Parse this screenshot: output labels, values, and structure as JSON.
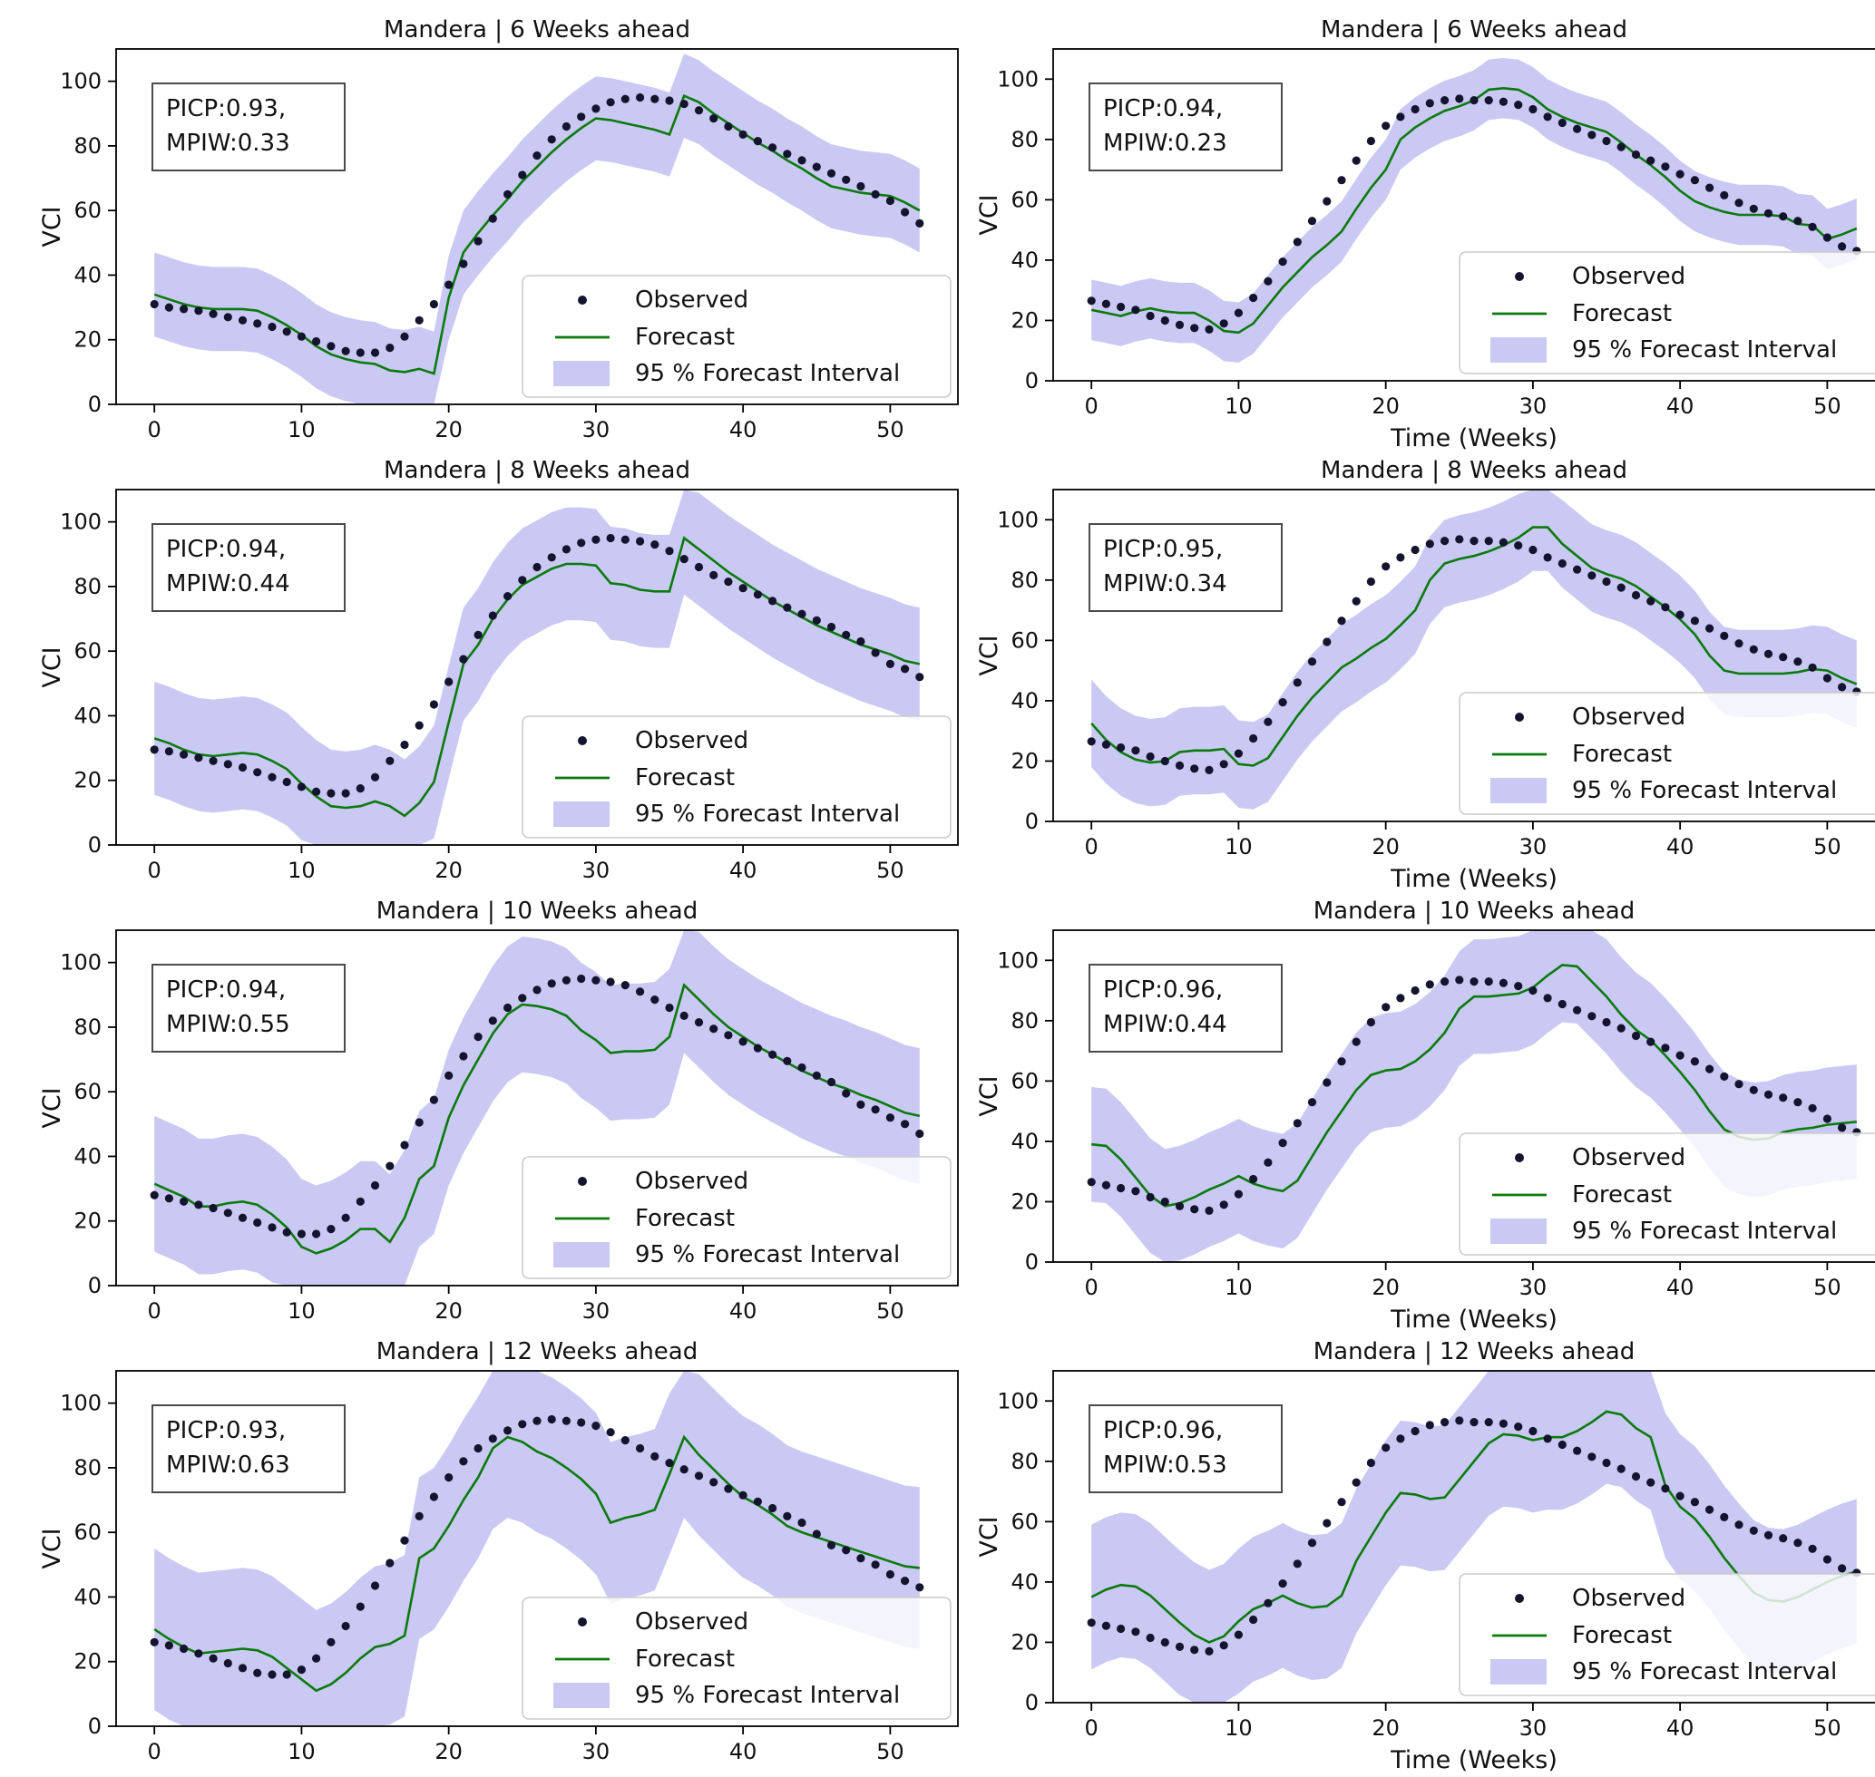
{
  "figure": {
    "y_label": "VCI",
    "x_label": "Time (Weeks)",
    "y_ticks": [
      0,
      20,
      40,
      60,
      80,
      100
    ],
    "x_ticks": [
      0,
      10,
      20,
      30,
      40,
      50
    ],
    "ylim": [
      0,
      110
    ],
    "xlim": [
      -2.6,
      54.6
    ],
    "legend": {
      "observed": "Observed",
      "forecast": "Forecast",
      "interval": "95 % Forecast Interval"
    },
    "colors": {
      "observed": "#14142e",
      "forecast": "#0a7a0a",
      "interval": "#8e8ee9",
      "interval_alpha": 0.48,
      "axis": "#000000",
      "annotation_border": "#4a4a4a",
      "legend_border": "#cccccc"
    }
  },
  "chart_data": [
    {
      "type": "line",
      "title": "Mandera | 6 Weeks ahead",
      "annotation_line1": "PICP:0.93,",
      "annotation_line2": "MPIW:0.33",
      "picp": 0.93,
      "mpiw": 0.33,
      "show_x_label": false,
      "interval_half_width": 13,
      "observed": [
        31,
        30,
        29.5,
        29,
        28,
        27,
        26,
        25,
        24,
        22.5,
        21,
        19.5,
        18,
        16.5,
        16,
        16,
        17.5,
        21,
        26,
        31,
        37,
        43.5,
        50.5,
        57.5,
        65,
        71,
        77,
        82,
        86,
        89,
        91.5,
        93.5,
        94.5,
        95,
        94.5,
        94,
        93,
        91,
        88.5,
        86,
        83.5,
        81.5,
        79.5,
        77.5,
        75.5,
        73.5,
        71.5,
        69.5,
        67.5,
        65,
        63,
        59.5,
        56
      ],
      "forecast": [
        34,
        32.5,
        31,
        30,
        29.5,
        29.5,
        29.5,
        29,
        27,
        24.5,
        21.5,
        18,
        15.5,
        14,
        13,
        12.5,
        10.5,
        10,
        11,
        9.5,
        33,
        47,
        53,
        58.5,
        63.5,
        69,
        73.5,
        78,
        82,
        85.5,
        88.5,
        88,
        87,
        86,
        85,
        83.5,
        95.5,
        93.5,
        90,
        87,
        84,
        81,
        78.5,
        75.5,
        73,
        70,
        67.5,
        66.5,
        65.5,
        65,
        64.5,
        62.5,
        60
      ]
    },
    {
      "type": "line",
      "title": "Mandera | 6 Weeks ahead",
      "annotation_line1": "PICP:0.94,",
      "annotation_line2": "MPIW:0.23",
      "picp": 0.94,
      "mpiw": 0.23,
      "show_x_label": true,
      "interval_half_width": 10,
      "observed": [
        26.5,
        25.5,
        24.5,
        23.5,
        21.5,
        20,
        18.5,
        17.5,
        17,
        19,
        22.5,
        27.5,
        33,
        39.5,
        46,
        53,
        59.5,
        66.5,
        73,
        79.5,
        84.5,
        87.5,
        90,
        92,
        93,
        93.5,
        93,
        93,
        92.5,
        91.5,
        90,
        87.5,
        85.5,
        83.5,
        81.5,
        79.5,
        77.5,
        75,
        73,
        71,
        68.5,
        66.5,
        64,
        61.5,
        59,
        57,
        55.5,
        54.5,
        53,
        51,
        47.5,
        44.5,
        43
      ],
      "forecast": [
        23.5,
        22.5,
        21.5,
        23,
        24,
        23,
        22.5,
        22.5,
        20,
        16.5,
        16,
        19,
        25,
        31,
        36,
        41,
        45,
        49.5,
        57,
        64,
        70,
        80,
        84,
        87,
        89.5,
        91,
        93,
        96.5,
        97,
        96.5,
        94,
        90,
        87.5,
        85.5,
        84,
        82.5,
        79,
        75,
        71.5,
        67.5,
        63,
        59.5,
        57.5,
        56,
        55,
        55,
        55,
        54.5,
        52,
        51.5,
        47,
        48.5,
        50.5
      ]
    },
    {
      "type": "line",
      "title": "Mandera | 8 Weeks ahead",
      "annotation_line1": "PICP:0.94,",
      "annotation_line2": "MPIW:0.44",
      "picp": 0.94,
      "mpiw": 0.44,
      "show_x_label": false,
      "interval_half_width": 17.5,
      "observed": [
        29.5,
        29,
        28,
        27,
        26,
        25,
        24,
        22.5,
        21,
        19.5,
        18,
        16.5,
        16,
        16,
        17.5,
        21,
        26,
        31,
        37,
        43.5,
        50.5,
        57.5,
        65,
        71,
        77,
        82,
        86,
        89,
        91.5,
        93.5,
        94.5,
        95,
        94.5,
        94,
        93,
        91,
        88.5,
        86,
        83.5,
        81.5,
        79.5,
        77.5,
        75.5,
        73.5,
        71.5,
        69.5,
        67.5,
        65,
        63,
        59.5,
        56,
        54.5,
        52
      ],
      "forecast": [
        33,
        31.5,
        29.5,
        28,
        27.5,
        28,
        28.5,
        28,
        26,
        23.5,
        19,
        15,
        12,
        11.5,
        12,
        13.5,
        12,
        9,
        13,
        19.5,
        38,
        56,
        62,
        70,
        76,
        80.5,
        83,
        85.5,
        87,
        87,
        86.5,
        81,
        80.5,
        79,
        78.5,
        78.5,
        95,
        91.5,
        88,
        84.5,
        81.5,
        78.5,
        75.5,
        73,
        70.5,
        68,
        66,
        64,
        62,
        60.5,
        59,
        57,
        56
      ]
    },
    {
      "type": "line",
      "title": "Mandera | 8 Weeks ahead",
      "annotation_line1": "PICP:0.95,",
      "annotation_line2": "MPIW:0.34",
      "picp": 0.95,
      "mpiw": 0.34,
      "show_x_label": true,
      "interval_half_width": 14.5,
      "observed": [
        26.5,
        25.5,
        24.5,
        23.5,
        21.5,
        20,
        18.5,
        17.5,
        17,
        19,
        22.5,
        27.5,
        33,
        39.5,
        46,
        53,
        59.5,
        66.5,
        73,
        79.5,
        84.5,
        87.5,
        90,
        92,
        93,
        93.5,
        93,
        93,
        92.5,
        91.5,
        90,
        87.5,
        85.5,
        83.5,
        81.5,
        79.5,
        77.5,
        75,
        73,
        71,
        68.5,
        66.5,
        64,
        61.5,
        59,
        57,
        55.5,
        54.5,
        53,
        51,
        47.5,
        44.5,
        43
      ],
      "forecast": [
        32.5,
        27,
        23,
        20.5,
        19.5,
        20,
        23,
        23.5,
        23.5,
        24,
        19,
        18.5,
        21,
        28,
        35,
        41,
        46,
        51,
        54,
        57.5,
        60.5,
        65,
        70,
        80,
        85.5,
        87,
        88,
        89.5,
        91.5,
        94,
        97.5,
        97.5,
        92,
        88,
        84,
        82,
        80.5,
        78,
        74.5,
        71,
        67,
        62,
        55,
        50,
        49,
        49,
        49,
        49,
        49.5,
        50.5,
        50,
        47.5,
        45.5
      ]
    },
    {
      "type": "line",
      "title": "Mandera | 10 Weeks ahead",
      "annotation_line1": "PICP:0.94,",
      "annotation_line2": "MPIW:0.55",
      "picp": 0.94,
      "mpiw": 0.55,
      "show_x_label": false,
      "interval_half_width": 21,
      "observed": [
        28,
        27,
        26,
        25,
        24,
        22.5,
        21,
        19.5,
        18,
        16.5,
        16,
        16,
        17.5,
        21,
        26,
        31,
        37,
        43.5,
        50.5,
        57.5,
        65,
        71,
        77,
        82,
        86,
        89,
        91.5,
        93.5,
        94.5,
        95,
        94.5,
        94,
        93,
        91,
        88.5,
        86,
        83.5,
        81.5,
        79.5,
        77.5,
        75.5,
        73.5,
        71.5,
        69.5,
        67.5,
        65,
        63,
        59.5,
        56,
        54.5,
        52,
        50,
        47
      ],
      "forecast": [
        31.5,
        29.5,
        27.5,
        24.5,
        24.5,
        25.5,
        26,
        25,
        22,
        18,
        12,
        10,
        11.5,
        14,
        17.5,
        17.5,
        13.5,
        21,
        33,
        37,
        52,
        62,
        70,
        78,
        84,
        87,
        86.5,
        85.5,
        83.5,
        79,
        76,
        72,
        72.5,
        72.5,
        73,
        77,
        93,
        88.5,
        84,
        80,
        77,
        74,
        71.5,
        69,
        66.5,
        64.5,
        62.5,
        61,
        59,
        57.5,
        55.5,
        53.5,
        52.5
      ]
    },
    {
      "type": "line",
      "title": "Mandera | 10 Weeks ahead",
      "annotation_line1": "PICP:0.96,",
      "annotation_line2": "MPIW:0.44",
      "picp": 0.96,
      "mpiw": 0.44,
      "show_x_label": true,
      "interval_half_width": 19,
      "observed": [
        26.5,
        25.5,
        24.5,
        23.5,
        21.5,
        20,
        18.5,
        17.5,
        17,
        19,
        22.5,
        27.5,
        33,
        39.5,
        46,
        53,
        59.5,
        66.5,
        73,
        79.5,
        84.5,
        87.5,
        90,
        92,
        93,
        93.5,
        93,
        93,
        92.5,
        91.5,
        90,
        87.5,
        85.5,
        83.5,
        81.5,
        79.5,
        77.5,
        75,
        73,
        71,
        68.5,
        66.5,
        64,
        61.5,
        59,
        57,
        55.5,
        54.5,
        53,
        51,
        47.5,
        44.5,
        43
      ],
      "forecast": [
        39,
        38.5,
        34,
        28,
        22,
        18.5,
        19.5,
        21.5,
        24,
        26,
        28.5,
        26,
        24.5,
        23.5,
        27,
        35,
        43,
        50,
        57,
        62,
        63.5,
        64,
        66.5,
        70.5,
        76,
        84,
        88,
        88,
        88.5,
        89,
        91,
        95,
        98.5,
        98,
        93,
        88,
        82,
        77,
        73.5,
        68.5,
        63,
        57,
        50,
        44,
        41.5,
        40.5,
        41,
        43,
        44,
        44.5,
        45.5,
        46,
        46.5
      ]
    },
    {
      "type": "line",
      "title": "Mandera | 12 Weeks ahead",
      "annotation_line1": "PICP:0.93,",
      "annotation_line2": "MPIW:0.63",
      "picp": 0.93,
      "mpiw": 0.63,
      "show_x_label": false,
      "interval_half_width": 25,
      "observed": [
        26,
        25,
        24,
        22.5,
        21,
        19.5,
        18,
        16.5,
        16,
        16,
        17.5,
        21,
        26,
        31,
        37,
        43.5,
        50.5,
        57.5,
        65,
        71,
        77,
        82,
        86,
        89,
        91.5,
        93.5,
        94.5,
        95,
        94.5,
        94,
        93,
        91,
        88.5,
        86,
        83.5,
        81.5,
        79.5,
        77.5,
        75.5,
        73.5,
        71.5,
        69.5,
        67.5,
        65,
        63,
        59.5,
        56,
        54.5,
        52,
        50,
        47,
        45,
        43
      ],
      "forecast": [
        30,
        27,
        24.5,
        22.5,
        23,
        23.5,
        24,
        23.5,
        21.5,
        18,
        14.5,
        11,
        13,
        16.5,
        21,
        24.5,
        25.5,
        28,
        52,
        55,
        62,
        70,
        77,
        86,
        89.5,
        88,
        85,
        83,
        80,
        76.5,
        72,
        63,
        64.5,
        65.5,
        67,
        78,
        89.5,
        84,
        79.5,
        75,
        71,
        68.5,
        65.5,
        62,
        60,
        58.5,
        57,
        55.5,
        54,
        52.5,
        51,
        49.5,
        49
      ]
    },
    {
      "type": "line",
      "title": "Mandera | 12 Weeks ahead",
      "annotation_line1": "PICP:0.96,",
      "annotation_line2": "MPIW:0.53",
      "picp": 0.96,
      "mpiw": 0.53,
      "show_x_label": true,
      "interval_half_width": 24,
      "observed": [
        26.5,
        25.5,
        24.5,
        23.5,
        21.5,
        20,
        18.5,
        17.5,
        17,
        19,
        22.5,
        27.5,
        33,
        39.5,
        46,
        53,
        59.5,
        66.5,
        73,
        79.5,
        84.5,
        87.5,
        90,
        92,
        93,
        93.5,
        93,
        93,
        92.5,
        91.5,
        90,
        87.5,
        85.5,
        83.5,
        81.5,
        79.5,
        77.5,
        75,
        73,
        71,
        68.5,
        66.5,
        64,
        61.5,
        59,
        57,
        55.5,
        54.5,
        53,
        51,
        47.5,
        44.5,
        43
      ],
      "forecast": [
        35,
        37.5,
        39,
        38.5,
        35.5,
        31,
        26.5,
        22.5,
        20,
        22,
        27,
        31,
        33,
        35.5,
        33,
        31.5,
        32,
        35.5,
        47,
        55,
        63,
        69.5,
        69,
        67.5,
        68,
        74,
        80,
        86,
        89,
        88.5,
        87,
        88,
        88,
        90,
        93,
        96.5,
        95.5,
        91,
        88,
        72,
        65,
        61,
        55,
        48,
        42,
        36.5,
        34,
        33.5,
        35,
        37.5,
        40,
        42,
        43.5
      ]
    }
  ]
}
